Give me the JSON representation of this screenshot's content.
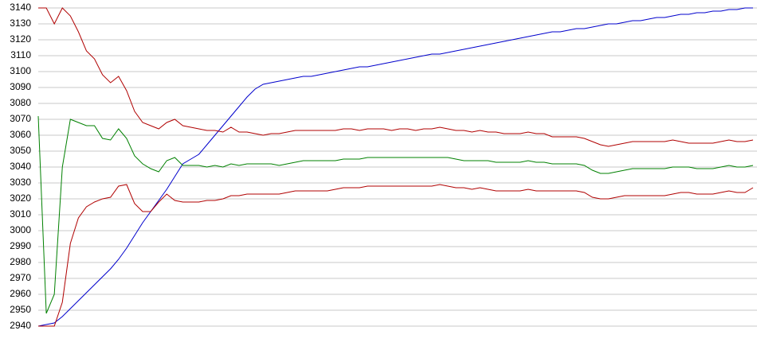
{
  "chart_data": {
    "type": "line",
    "categories": [
      null,
      null,
      null,
      null,
      null,
      null,
      null,
      null,
      null,
      null,
      null,
      null,
      null,
      null,
      null,
      null,
      null,
      null,
      null,
      null,
      null,
      null,
      null,
      null,
      null,
      null,
      null,
      null,
      null,
      null,
      null,
      null,
      null,
      null,
      null,
      null,
      null,
      null,
      null,
      null,
      null,
      null,
      null,
      null,
      null,
      null,
      null,
      null,
      null,
      null,
      null,
      null,
      null,
      null,
      null,
      null,
      null,
      null,
      null,
      null,
      null,
      null,
      null,
      null,
      null,
      null,
      null,
      null,
      null,
      null,
      null,
      null,
      null,
      null,
      null,
      null,
      null,
      null,
      null,
      null,
      null,
      null,
      null,
      null,
      null,
      null,
      null,
      null,
      null,
      null
    ],
    "series": [
      {
        "color": "#0000cc",
        "values": [
          2940,
          2941,
          2942,
          2946,
          2951,
          2956,
          2961,
          2966,
          2971,
          2976,
          2982,
          2989,
          2997,
          3005,
          3012,
          3019,
          3026,
          3034,
          3042,
          3045,
          3048,
          3054,
          3060,
          3066,
          3072,
          3078,
          3084,
          3089,
          3092,
          3093,
          3094,
          3095,
          3096,
          3097,
          3097,
          3098,
          3099,
          3100,
          3101,
          3102,
          3103,
          3103,
          3104,
          3105,
          3106,
          3107,
          3108,
          3109,
          3110,
          3111,
          3111,
          3112,
          3113,
          3114,
          3115,
          3116,
          3117,
          3118,
          3119,
          3120,
          3121,
          3122,
          3123,
          3124,
          3125,
          3125,
          3126,
          3127,
          3127,
          3128,
          3129,
          3130,
          3130,
          3131,
          3132,
          3132,
          3133,
          3134,
          3134,
          3135,
          3136,
          3136,
          3137,
          3137,
          3138,
          3138,
          3139,
          3139,
          3140,
          3140
        ]
      },
      {
        "color": "#b00000",
        "values": [
          3140,
          3140,
          3130,
          3140,
          3135,
          3125,
          3113,
          3108,
          3098,
          3093,
          3097,
          3088,
          3075,
          3068,
          3066,
          3064,
          3068,
          3070,
          3066,
          3065,
          3064,
          3063,
          3063,
          3062,
          3065,
          3062,
          3062,
          3061,
          3060,
          3061,
          3061,
          3062,
          3063,
          3063,
          3063,
          3063,
          3063,
          3063,
          3064,
          3064,
          3063,
          3064,
          3064,
          3064,
          3063,
          3064,
          3064,
          3063,
          3064,
          3064,
          3065,
          3064,
          3063,
          3063,
          3062,
          3063,
          3062,
          3062,
          3061,
          3061,
          3061,
          3062,
          3061,
          3061,
          3059,
          3059,
          3059,
          3059,
          3058,
          3056,
          3054,
          3053,
          3054,
          3055,
          3056,
          3056,
          3056,
          3056,
          3056,
          3057,
          3056,
          3055,
          3055,
          3055,
          3055,
          3056,
          3057,
          3056,
          3056,
          3057
        ]
      },
      {
        "color": "#008000",
        "values": [
          3072,
          2948,
          2960,
          3040,
          3070,
          3068,
          3066,
          3066,
          3058,
          3057,
          3064,
          3058,
          3047,
          3042,
          3039,
          3037,
          3044,
          3046,
          3041,
          3041,
          3041,
          3040,
          3041,
          3040,
          3042,
          3041,
          3042,
          3042,
          3042,
          3042,
          3041,
          3042,
          3043,
          3044,
          3044,
          3044,
          3044,
          3044,
          3045,
          3045,
          3045,
          3046,
          3046,
          3046,
          3046,
          3046,
          3046,
          3046,
          3046,
          3046,
          3046,
          3046,
          3045,
          3044,
          3044,
          3044,
          3044,
          3043,
          3043,
          3043,
          3043,
          3044,
          3043,
          3043,
          3042,
          3042,
          3042,
          3042,
          3041,
          3038,
          3036,
          3036,
          3037,
          3038,
          3039,
          3039,
          3039,
          3039,
          3039,
          3040,
          3040,
          3040,
          3039,
          3039,
          3039,
          3040,
          3041,
          3040,
          3040,
          3041
        ]
      },
      {
        "color": "#b00000",
        "values": [
          2940,
          2940,
          2940,
          2955,
          2992,
          3008,
          3015,
          3018,
          3020,
          3021,
          3028,
          3029,
          3017,
          3012,
          3012,
          3018,
          3023,
          3019,
          3018,
          3018,
          3018,
          3019,
          3019,
          3020,
          3022,
          3022,
          3023,
          3023,
          3023,
          3023,
          3023,
          3024,
          3025,
          3025,
          3025,
          3025,
          3025,
          3026,
          3027,
          3027,
          3027,
          3028,
          3028,
          3028,
          3028,
          3028,
          3028,
          3028,
          3028,
          3028,
          3029,
          3028,
          3027,
          3027,
          3026,
          3027,
          3026,
          3025,
          3025,
          3025,
          3025,
          3026,
          3025,
          3025,
          3025,
          3025,
          3025,
          3025,
          3024,
          3021,
          3020,
          3020,
          3021,
          3022,
          3022,
          3022,
          3022,
          3022,
          3022,
          3023,
          3024,
          3024,
          3023,
          3023,
          3023,
          3024,
          3025,
          3024,
          3024,
          3027
        ]
      }
    ],
    "ylim": [
      2940,
      3140
    ],
    "yticks": [
      2940,
      2950,
      2960,
      2970,
      2980,
      2990,
      3000,
      3010,
      3020,
      3030,
      3040,
      3050,
      3060,
      3070,
      3080,
      3090,
      3100,
      3110,
      3120,
      3130,
      3140
    ],
    "grid": true
  }
}
